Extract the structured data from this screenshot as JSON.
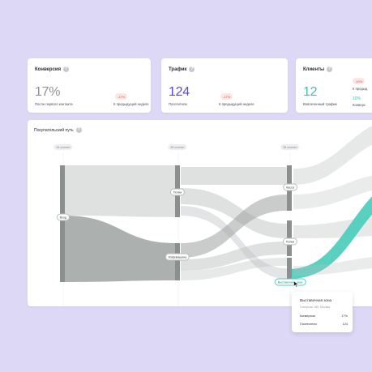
{
  "cards": [
    {
      "title": "Конверсия",
      "value": "17%",
      "value_color": "#8f8f98",
      "sub_label": "После первого контакта",
      "delta": "-17%",
      "delta_sub": "К предыдущей неделе"
    },
    {
      "title": "Трафик",
      "value": "124",
      "value_color": "#5b47d6",
      "sub_label": "Посетители",
      "delta": "-17%",
      "delta_sub": "К предыдущей неделе"
    },
    {
      "title": "Клиенты",
      "value": "12",
      "value_color": "#3fbfb0",
      "sub_label": "Вовлеченный трафик",
      "delta": "-10%",
      "delta_sub": "К предыд",
      "extra_value": "10%",
      "extra_sub": "Конверс"
    }
  ],
  "panel": {
    "title": "Покупательский путь",
    "steps": [
      "1й контакт",
      "2й контакт",
      "3й контакт"
    ],
    "nodes": {
      "entry": "Вход",
      "step2_top": "Полки",
      "step2_bottom": "Кофемашина",
      "step3_top": "Касса",
      "step3_mid": "Полки",
      "step3_active": "Выставочная зона"
    },
    "colors": {
      "flow": "#b9bcbd",
      "node": "#8b8f8e",
      "highlight": "#4fcfbd"
    }
  },
  "tooltip": {
    "title": "Выставочная зона",
    "subtitle": "Гиперcом 185, Москва",
    "rows": [
      {
        "label": "Конверсия",
        "value": "17%"
      },
      {
        "label": "Посетители",
        "value": "124"
      }
    ]
  }
}
